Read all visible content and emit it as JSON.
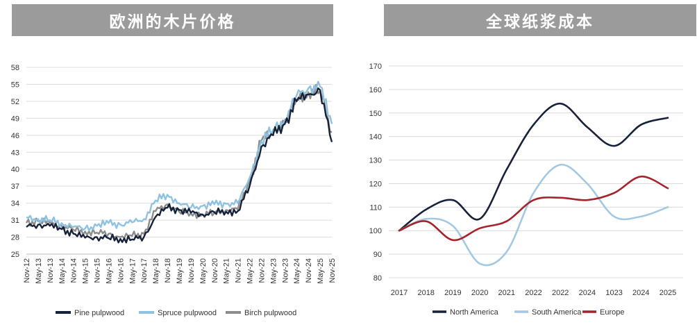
{
  "left": {
    "title": "欧洲的木片价格",
    "chart_data": {
      "type": "line",
      "title": "欧洲的木片价格",
      "ylim": [
        25,
        58
      ],
      "yticks": [
        25,
        28,
        31,
        34,
        37,
        40,
        43,
        46,
        49,
        52,
        55,
        58
      ],
      "xticks": [
        "Nov-12",
        "May-13",
        "Nov-13",
        "May-14",
        "Nov-14",
        "May-15",
        "Nov-15",
        "May-16",
        "Nov-16",
        "May-17",
        "Nov-17",
        "May-18",
        "Nov-18",
        "May-19",
        "Nov-19",
        "May-20",
        "Nov-20",
        "May-21",
        "Nov-21",
        "May-22",
        "Nov-22",
        "May-23",
        "Nov-23",
        "May-24",
        "Nov-24",
        "May-25",
        "Nov-25"
      ],
      "grid": "horizontal",
      "legend": "bottom",
      "series": [
        {
          "name": "Pine pulpwood",
          "color": "#16213a",
          "values": [
            29.8,
            30.2,
            30.0,
            29.4,
            28.6,
            27.9,
            28.0,
            27.8,
            27.7,
            27.6,
            28.0,
            31.6,
            33.2,
            32.8,
            32.3,
            32.0,
            32.4,
            32.5,
            32.6,
            37.0,
            44.0,
            46.0,
            48.0,
            52.0,
            53.2,
            54.0,
            44.8
          ]
        },
        {
          "name": "Spruce pulpwood",
          "color": "#8fc1e0",
          "values": [
            31.5,
            31.2,
            31.0,
            30.5,
            29.8,
            29.5,
            30.0,
            30.5,
            30.2,
            30.6,
            31.2,
            34.5,
            35.5,
            34.0,
            33.2,
            33.5,
            33.8,
            33.9,
            34.0,
            38.5,
            45.0,
            47.0,
            48.8,
            53.0,
            54.3,
            54.6,
            48.0
          ]
        },
        {
          "name": "Birch pulpwood",
          "color": "#8c8c8c",
          "values": [
            30.5,
            30.8,
            30.5,
            30.0,
            29.3,
            29.0,
            28.8,
            28.6,
            28.0,
            28.2,
            28.6,
            32.6,
            33.8,
            32.5,
            32.2,
            32.0,
            32.3,
            32.8,
            32.9,
            38.0,
            45.0,
            46.5,
            48.4,
            52.3,
            53.6,
            53.8,
            46.5
          ]
        }
      ]
    }
  },
  "right": {
    "title": "全球纸浆成本",
    "chart_data": {
      "type": "line",
      "title": "全球纸浆成本",
      "ylim": [
        80,
        170
      ],
      "yticks": [
        80,
        90,
        100,
        110,
        120,
        130,
        140,
        150,
        160,
        170
      ],
      "categories": [
        "2017",
        "2018",
        "2019",
        "2020",
        "2021",
        "2022",
        "2022",
        "2024",
        "1023",
        "2024",
        "2025"
      ],
      "grid": "horizontal",
      "legend": "bottom",
      "series": [
        {
          "name": "North America",
          "color": "#16213a",
          "values": [
            100,
            109,
            113,
            105,
            126,
            145,
            154,
            144,
            136,
            145,
            148
          ]
        },
        {
          "name": "South America",
          "color": "#a3c9e2",
          "values": [
            100,
            105,
            102,
            86,
            91,
            116,
            128,
            120,
            106,
            106,
            110
          ]
        },
        {
          "name": "Europe",
          "color": "#a5232b",
          "values": [
            100,
            104,
            96,
            101,
            104,
            113,
            114,
            113,
            116,
            123,
            118
          ]
        }
      ]
    }
  }
}
